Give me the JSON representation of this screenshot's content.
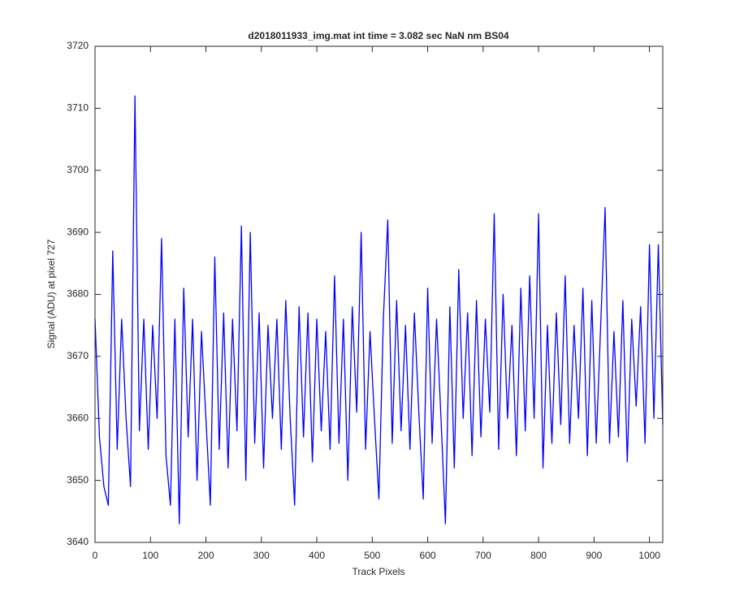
{
  "chart_data": {
    "type": "line",
    "title": "d2018011933_img.mat int time = 3.082 sec  NaN nm BS04",
    "x_label": "Track Pixels",
    "y_label": "Signal (ADU) at pixel 727",
    "color": "#0000ff",
    "x": [
      0,
      8,
      16,
      24,
      32,
      40,
      48,
      56,
      64,
      72,
      80,
      88,
      96,
      104,
      112,
      120,
      128,
      136,
      144,
      152,
      160,
      168,
      176,
      184,
      192,
      200,
      208,
      216,
      224,
      232,
      240,
      248,
      256,
      264,
      272,
      280,
      288,
      296,
      304,
      312,
      320,
      328,
      336,
      344,
      352,
      360,
      368,
      376,
      384,
      392,
      400,
      408,
      416,
      424,
      432,
      440,
      448,
      456,
      464,
      472,
      480,
      488,
      496,
      504,
      512,
      520,
      528,
      536,
      544,
      552,
      560,
      568,
      576,
      584,
      592,
      600,
      608,
      616,
      624,
      632,
      640,
      648,
      656,
      664,
      672,
      680,
      688,
      696,
      704,
      712,
      720,
      728,
      736,
      744,
      752,
      760,
      768,
      776,
      784,
      792,
      800,
      808,
      816,
      824,
      832,
      840,
      848,
      856,
      864,
      872,
      880,
      888,
      896,
      904,
      912,
      920,
      928,
      936,
      944,
      952,
      960,
      968,
      976,
      984,
      992,
      1000,
      1008,
      1016,
      1024
    ],
    "values": [
      3676,
      3657,
      3649,
      3646,
      3687,
      3655,
      3676,
      3660,
      3649,
      3712,
      3658,
      3676,
      3655,
      3675,
      3660,
      3689,
      3654,
      3646,
      3676,
      3643,
      3681,
      3657,
      3676,
      3650,
      3674,
      3660,
      3646,
      3686,
      3655,
      3677,
      3652,
      3676,
      3658,
      3691,
      3650,
      3690,
      3656,
      3677,
      3652,
      3675,
      3660,
      3676,
      3655,
      3679,
      3660,
      3646,
      3678,
      3657,
      3677,
      3653,
      3676,
      3658,
      3674,
      3655,
      3683,
      3656,
      3676,
      3650,
      3678,
      3661,
      3690,
      3655,
      3674,
      3660,
      3647,
      3676,
      3692,
      3656,
      3679,
      3658,
      3675,
      3655,
      3677,
      3661,
      3647,
      3681,
      3656,
      3676,
      3660,
      3643,
      3678,
      3652,
      3684,
      3660,
      3677,
      3654,
      3679,
      3657,
      3676,
      3661,
      3693,
      3655,
      3680,
      3660,
      3675,
      3654,
      3681,
      3658,
      3683,
      3660,
      3693,
      3652,
      3675,
      3656,
      3677,
      3659,
      3683,
      3656,
      3675,
      3660,
      3681,
      3654,
      3679,
      3656,
      3675,
      3694,
      3656,
      3674,
      3657,
      3679,
      3653,
      3676,
      3662,
      3678,
      3656,
      3688,
      3660,
      3688,
      3659
    ],
    "xlim": [
      0,
      1024
    ],
    "ylim": [
      3640,
      3720
    ],
    "xticks": [
      0,
      100,
      200,
      300,
      400,
      500,
      600,
      700,
      800,
      900,
      1000
    ],
    "yticks": [
      3640,
      3650,
      3660,
      3670,
      3680,
      3690,
      3700,
      3710,
      3720
    ]
  }
}
